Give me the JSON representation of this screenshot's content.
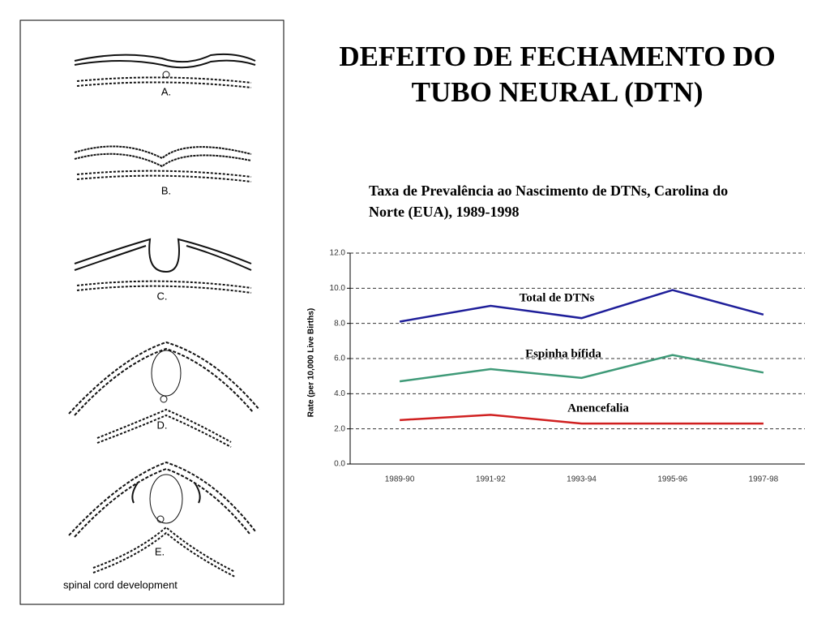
{
  "illustration": {
    "labels": [
      "A.",
      "B.",
      "C.",
      "D.",
      "E."
    ],
    "caption": "spinal cord development"
  },
  "chart_data": {
    "type": "line",
    "title": "DEFEITO DE FECHAMENTO DO TUBO NEURAL (DTN)",
    "subtitle": "Taxa de Prevalência ao Nascimento de DTNs, Carolina do Norte (EUA), 1989-1998",
    "y_label": "Rate (per 10,000 Live Births)",
    "categories": [
      "1989-90",
      "1991-92",
      "1993-94",
      "1995-96",
      "1997-98"
    ],
    "series": [
      {
        "name": "Total de DTNs",
        "color": "#1f1f9a",
        "values": [
          8.1,
          9.0,
          8.3,
          9.9,
          8.5
        ]
      },
      {
        "name": "Espinha bífida",
        "color": "#3f9a78",
        "values": [
          4.7,
          5.4,
          4.9,
          6.2,
          5.2
        ]
      },
      {
        "name": "Anencefalia",
        "color": "#d02020",
        "values": [
          2.5,
          2.8,
          2.3,
          2.3,
          2.3
        ]
      }
    ],
    "ylim": [
      0,
      12
    ],
    "yticks": [
      {
        "value": 0,
        "label": "0.0"
      },
      {
        "value": 2,
        "label": "2.0"
      },
      {
        "value": 4,
        "label": "4.0"
      },
      {
        "value": 6,
        "label": "6.0"
      },
      {
        "value": 8,
        "label": "8.0"
      },
      {
        "value": 10,
        "label": "10.0"
      },
      {
        "value": 12,
        "label": "12.0"
      }
    ],
    "grid": true
  }
}
